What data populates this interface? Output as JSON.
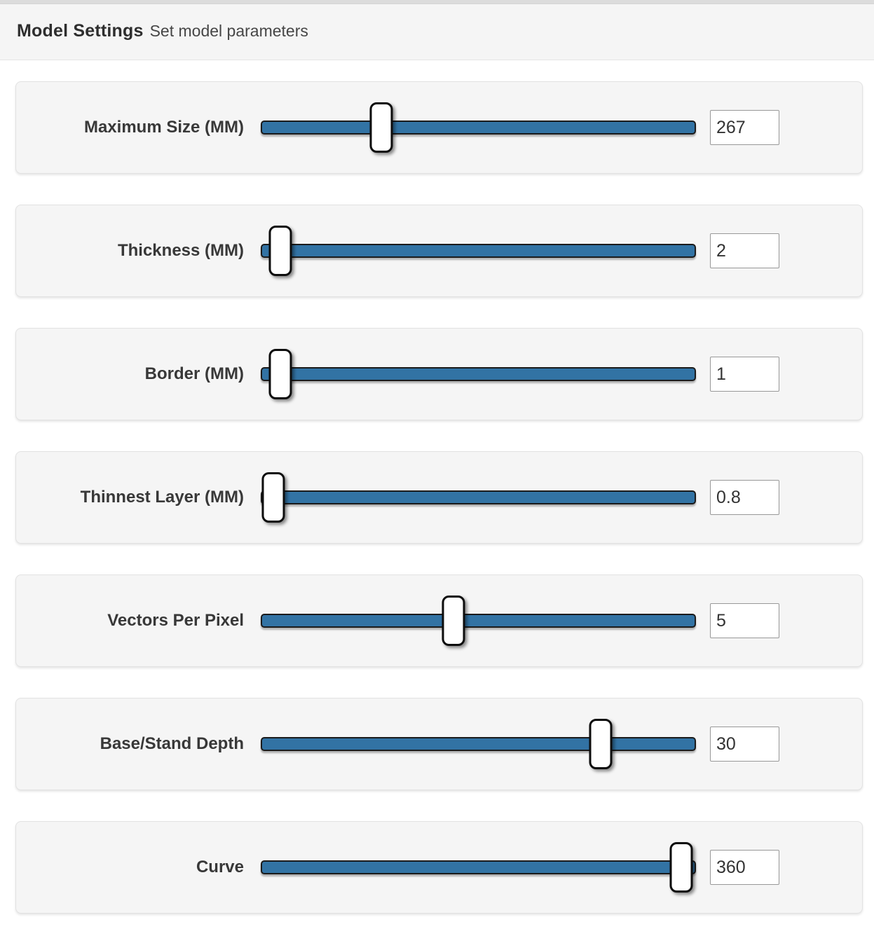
{
  "header": {
    "title": "Model Settings",
    "subtitle": "Set model parameters"
  },
  "colors": {
    "track_blue": "#3273a4",
    "track_border": "#1b1b1b",
    "thumb_fill": "#ffffff",
    "thumb_border": "#0d0d0d",
    "card_background": "#f5f5f5",
    "card_border": "#e2e2e2",
    "header_background": "#f5f5f5",
    "label_text": "#383838"
  },
  "sliders": [
    {
      "id": "maximum-size",
      "label": "Maximum Size (MM)",
      "value": "267",
      "position_pct": 27.7
    },
    {
      "id": "thickness",
      "label": "Thickness (MM)",
      "value": "2",
      "position_pct": 4.5
    },
    {
      "id": "border",
      "label": "Border (MM)",
      "value": "1",
      "position_pct": 4.5
    },
    {
      "id": "thinnest-layer",
      "label": "Thinnest Layer (MM)",
      "value": "0.8",
      "position_pct": 2.9
    },
    {
      "id": "vectors-per-pixel",
      "label": "Vectors Per Pixel",
      "value": "5",
      "position_pct": 44.3
    },
    {
      "id": "base-stand-depth",
      "label": "Base/Stand Depth",
      "value": "30",
      "position_pct": 78.1
    },
    {
      "id": "curve",
      "label": "Curve",
      "value": "360",
      "position_pct": 96.6
    }
  ]
}
